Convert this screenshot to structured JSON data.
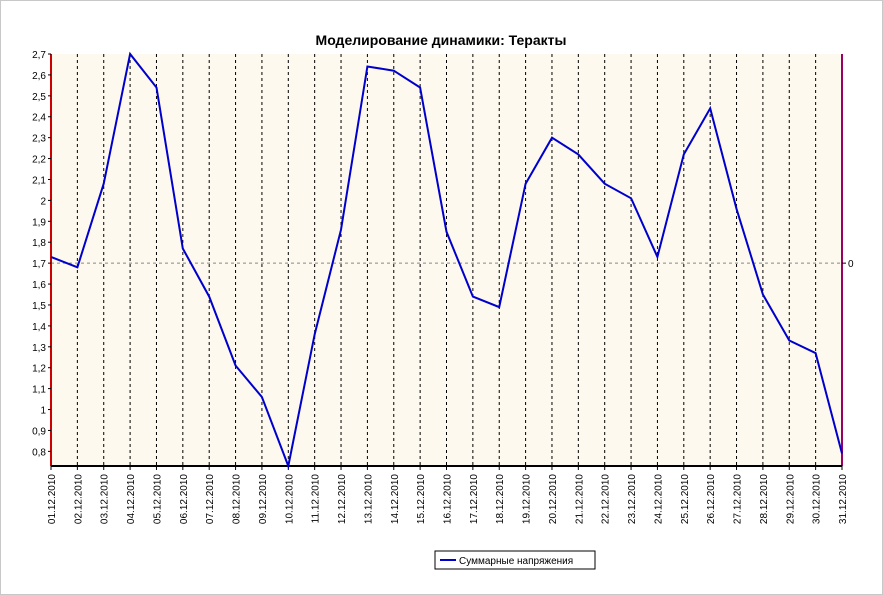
{
  "colors": {
    "plot_background": "#fdf9ee",
    "line": "#0000cc",
    "left_axis": "#cc0000",
    "right_axis": "#990066",
    "grid": "#000000",
    "zero_line": "#888888"
  },
  "chart_data": {
    "type": "line",
    "title": "Моделирование динамики: Теракты",
    "xlabel": "",
    "ylabel": "",
    "ylim": [
      0.73,
      2.7
    ],
    "y_ticks": [
      "0,8",
      "0,9",
      "1",
      "1,1",
      "1,2",
      "1,3",
      "1,4",
      "1,5",
      "1,6",
      "1,7",
      "1,8",
      "1,9",
      "2",
      "2,1",
      "2,2",
      "2,3",
      "2,4",
      "2,5",
      "2,6",
      "2,7"
    ],
    "y_tick_values": [
      0.8,
      0.9,
      1.0,
      1.1,
      1.2,
      1.3,
      1.4,
      1.5,
      1.6,
      1.7,
      1.8,
      1.9,
      2.0,
      2.1,
      2.2,
      2.3,
      2.4,
      2.5,
      2.6,
      2.7
    ],
    "right_axis": {
      "label": "0",
      "value": 1.7
    },
    "grid": true,
    "legend_position": "bottom-center",
    "categories": [
      "01.12.2010",
      "02.12.2010",
      "03.12.2010",
      "04.12.2010",
      "05.12.2010",
      "06.12.2010",
      "07.12.2010",
      "08.12.2010",
      "09.12.2010",
      "10.12.2010",
      "11.12.2010",
      "12.12.2010",
      "13.12.2010",
      "14.12.2010",
      "15.12.2010",
      "16.12.2010",
      "17.12.2010",
      "18.12.2010",
      "19.12.2010",
      "20.12.2010",
      "21.12.2010",
      "22.12.2010",
      "23.12.2010",
      "24.12.2010",
      "25.12.2010",
      "26.12.2010",
      "27.12.2010",
      "28.12.2010",
      "29.12.2010",
      "30.12.2010",
      "31.12.2010"
    ],
    "series": [
      {
        "name": "Суммарные напряжения",
        "values": [
          1.73,
          1.68,
          2.08,
          2.7,
          2.54,
          1.77,
          1.54,
          1.21,
          1.06,
          0.73,
          1.36,
          1.86,
          2.64,
          2.62,
          2.54,
          1.85,
          1.54,
          1.49,
          2.08,
          2.3,
          2.22,
          2.08,
          2.01,
          1.73,
          2.22,
          2.44,
          1.96,
          1.55,
          1.33,
          1.27,
          0.79
        ]
      }
    ]
  }
}
